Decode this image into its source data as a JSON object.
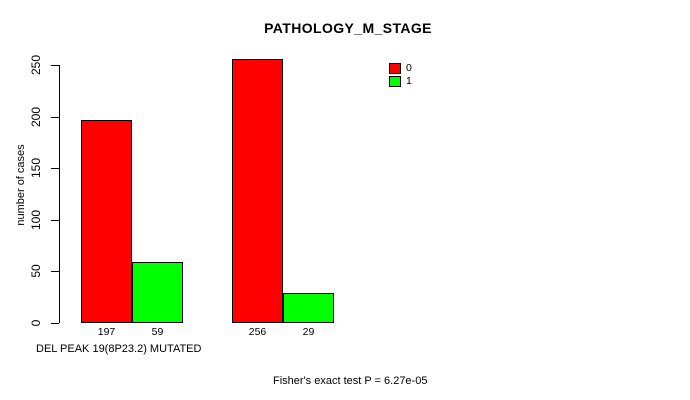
{
  "figure": {
    "background": "#ffffff"
  },
  "chart_data": {
    "type": "bar",
    "title": "PATHOLOGY_M_STAGE",
    "xlabel": "DEL PEAK 19(8P23.2) MUTATED",
    "ylabel": "number of cases",
    "annotation": "Fisher's exact test P = 6.27e-05",
    "ylim": [
      0,
      250
    ],
    "yticks": [
      0,
      50,
      100,
      150,
      200,
      250
    ],
    "grid": false,
    "legend_position": "top-right",
    "groups": [
      "group-1",
      "group-2"
    ],
    "series": [
      {
        "name": "0",
        "color": "#ff0000",
        "values": [
          197,
          256
        ]
      },
      {
        "name": "1",
        "color": "#00ff00",
        "values": [
          59,
          29
        ]
      }
    ],
    "bar_value_labels": [
      "197",
      "59",
      "256",
      "29"
    ]
  }
}
